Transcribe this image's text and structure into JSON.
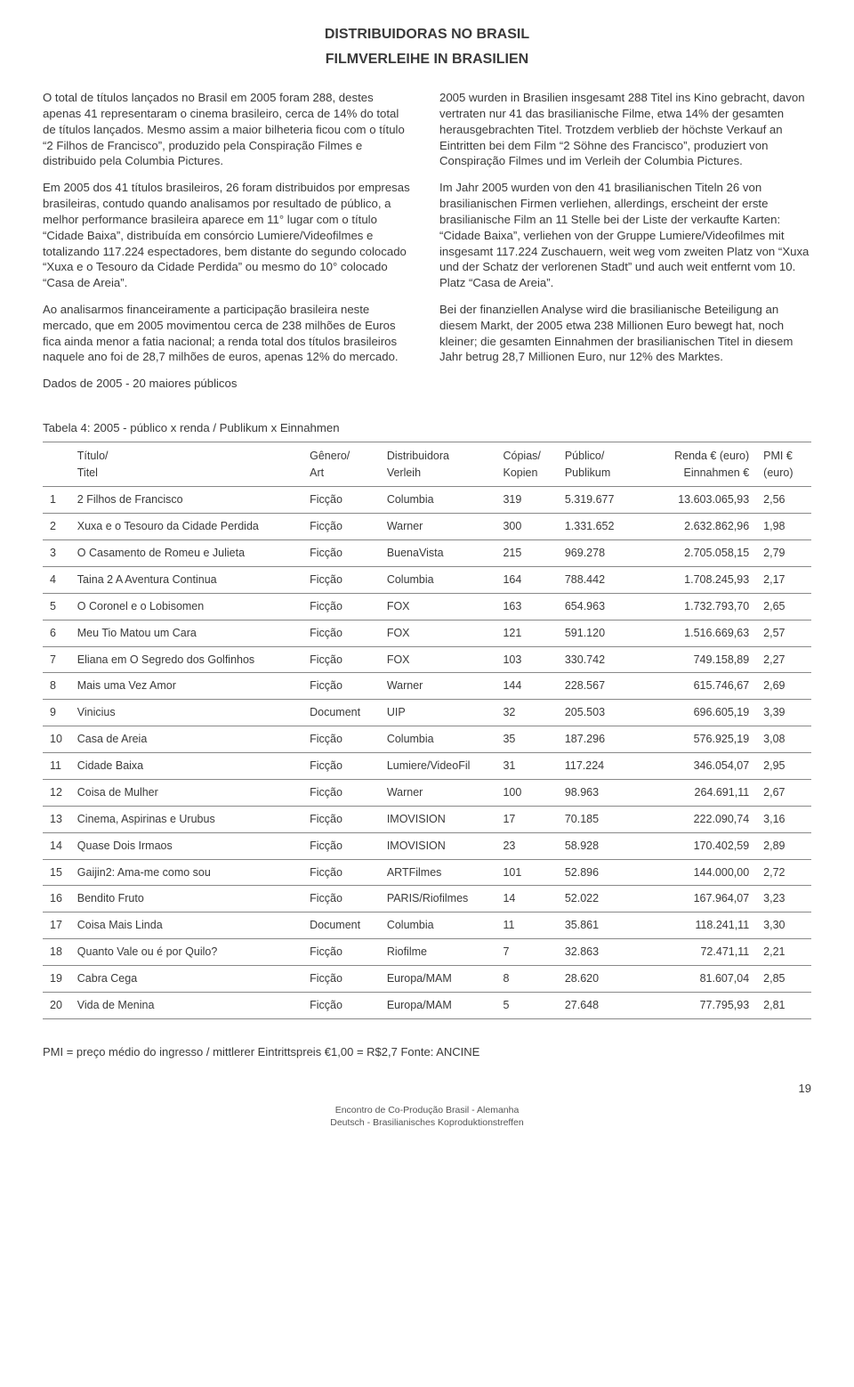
{
  "header": {
    "title": "DISTRIBUIDORAS NO BRASIL",
    "subtitle": "FILMVERLEIHE IN BRASILIEN"
  },
  "body": {
    "left_paragraphs": [
      "O total de títulos lançados no Brasil em 2005 foram 288, destes apenas 41 representaram o cinema brasileiro, cerca de 14% do total de títulos lançados. Mesmo assim a maior bilheteria ficou com o título “2 Filhos de Francisco”, produzido pela Conspiração Filmes e distribuido pela Columbia Pictures.",
      "Em 2005 dos 41 títulos brasileiros, 26 foram distribuidos por empresas brasileiras, contudo quando analisamos por resultado de público, a melhor performance brasileira aparece em 11° lugar com o título “Cidade Baixa”, distribuída em consórcio Lumiere/Videofilmes e totalizando 117.224 espectadores, bem distante do segundo colocado “Xuxa e o Tesouro da Cidade Perdida” ou mesmo do 10° colocado “Casa de Areia”.",
      "Ao analisarmos financeiramente a participação brasileira neste mercado, que em 2005 movimentou cerca de 238 milhões de Euros fica ainda menor a fatia nacional; a renda total dos títulos brasileiros naquele ano foi de 28,7 milhões de euros, apenas 12% do mercado.",
      "Dados de 2005 - 20 maiores públicos"
    ],
    "right_paragraphs": [
      "2005 wurden in Brasilien insgesamt 288 Titel ins Kino gebracht, davon vertraten nur 41 das brasilianische Filme, etwa 14% der gesamten herausgebrachten Titel. Trotzdem verblieb der höchste Verkauf an Eintritten bei dem Film “2 Söhne des Francisco”, produziert von Conspiração Filmes und im Verleih der Columbia Pictures.",
      "Im Jahr 2005 wurden von den 41 brasilianischen Titeln 26 von brasilianischen Firmen verliehen, allerdings, erscheint der erste brasilianische Film an 11 Stelle bei der Liste der verkaufte Karten: “Cidade Baixa”, verliehen von der Gruppe Lumiere/Videofilmes mit insgesamt 117.224 Zuschauern, weit weg vom zweiten Platz von “Xuxa und der Schatz der verlorenen Stadt” und auch weit entfernt vom 10. Platz “Casa de Areia”.",
      "Bei der finanziellen Analyse wird die brasilianische Beteiligung an diesem Markt, der 2005 etwa 238 Millionen Euro bewegt hat, noch kleiner; die gesamten Einnahmen der brasilianischen Titel in diesem Jahr betrug 28,7 Millionen Euro, nur 12% des Marktes."
    ]
  },
  "table": {
    "caption": "Tabela 4: 2005 - público x renda / Publikum x Einnahmen",
    "headers": {
      "title": "Título/\nTitel",
      "genre": "Gênero/\nArt",
      "distributor": "Distribuidora\nVerleih",
      "copies": "Cópias/\nKopien",
      "public": "Público/\nPublikum",
      "revenue": "Renda € (euro)\nEinnahmen €",
      "pmi": "PMI € (euro)"
    },
    "rows": [
      {
        "idx": "1",
        "title": "2 Filhos de Francisco",
        "genre": "Ficção",
        "dist": "Columbia",
        "copies": "319",
        "pub": "5.319.677",
        "rev": "13.603.065,93",
        "pmi": "2,56"
      },
      {
        "idx": "2",
        "title": "Xuxa e o Tesouro da Cidade Perdida",
        "genre": "Ficção",
        "dist": "Warner",
        "copies": "300",
        "pub": "1.331.652",
        "rev": "2.632.862,96",
        "pmi": "1,98"
      },
      {
        "idx": "3",
        "title": "O Casamento de Romeu e Julieta",
        "genre": "Ficção",
        "dist": "BuenaVista",
        "copies": "215",
        "pub": "969.278",
        "rev": "2.705.058,15",
        "pmi": "2,79"
      },
      {
        "idx": "4",
        "title": "Taina 2 A Aventura Continua",
        "genre": "Ficção",
        "dist": "Columbia",
        "copies": "164",
        "pub": "788.442",
        "rev": "1.708.245,93",
        "pmi": "2,17"
      },
      {
        "idx": "5",
        "title": "O Coronel e o Lobisomen",
        "genre": "Ficção",
        "dist": "FOX",
        "copies": "163",
        "pub": "654.963",
        "rev": "1.732.793,70",
        "pmi": "2,65"
      },
      {
        "idx": "6",
        "title": "Meu Tio Matou um Cara",
        "genre": "Ficção",
        "dist": "FOX",
        "copies": "121",
        "pub": "591.120",
        "rev": "1.516.669,63",
        "pmi": "2,57"
      },
      {
        "idx": "7",
        "title": "Eliana em O Segredo dos Golfinhos",
        "genre": "Ficção",
        "dist": "FOX",
        "copies": "103",
        "pub": "330.742",
        "rev": "749.158,89",
        "pmi": "2,27"
      },
      {
        "idx": "8",
        "title": "Mais uma Vez Amor",
        "genre": "Ficção",
        "dist": "Warner",
        "copies": "144",
        "pub": "228.567",
        "rev": "615.746,67",
        "pmi": "2,69"
      },
      {
        "idx": "9",
        "title": "Vinicius",
        "genre": "Document",
        "dist": "UIP",
        "copies": "32",
        "pub": "205.503",
        "rev": "696.605,19",
        "pmi": "3,39"
      },
      {
        "idx": "10",
        "title": "Casa de Areia",
        "genre": "Ficção",
        "dist": "Columbia",
        "copies": "35",
        "pub": "187.296",
        "rev": "576.925,19",
        "pmi": "3,08"
      },
      {
        "idx": "11",
        "title": "Cidade Baixa",
        "genre": "Ficção",
        "dist": "Lumiere/VideoFil",
        "copies": "31",
        "pub": "117.224",
        "rev": "346.054,07",
        "pmi": "2,95"
      },
      {
        "idx": "12",
        "title": "Coisa de Mulher",
        "genre": "Ficção",
        "dist": "Warner",
        "copies": "100",
        "pub": "98.963",
        "rev": "264.691,11",
        "pmi": "2,67"
      },
      {
        "idx": "13",
        "title": "Cinema, Aspirinas e Urubus",
        "genre": "Ficção",
        "dist": "IMOVISION",
        "copies": "17",
        "pub": "70.185",
        "rev": "222.090,74",
        "pmi": "3,16"
      },
      {
        "idx": "14",
        "title": "Quase Dois Irmaos",
        "genre": "Ficção",
        "dist": "IMOVISION",
        "copies": "23",
        "pub": "58.928",
        "rev": "170.402,59",
        "pmi": "2,89"
      },
      {
        "idx": "15",
        "title": "Gaijin2: Ama-me como sou",
        "genre": "Ficção",
        "dist": "ARTFilmes",
        "copies": "101",
        "pub": "52.896",
        "rev": "144.000,00",
        "pmi": "2,72"
      },
      {
        "idx": "16",
        "title": "Bendito Fruto",
        "genre": "Ficção",
        "dist": "PARIS/Riofilmes",
        "copies": "14",
        "pub": "52.022",
        "rev": "167.964,07",
        "pmi": "3,23"
      },
      {
        "idx": "17",
        "title": "Coisa Mais Linda",
        "genre": "Document",
        "dist": "Columbia",
        "copies": "11",
        "pub": "35.861",
        "rev": "118.241,11",
        "pmi": "3,30"
      },
      {
        "idx": "18",
        "title": "Quanto Vale ou é por Quilo?",
        "genre": "Ficção",
        "dist": "Riofilme",
        "copies": "7",
        "pub": "32.863",
        "rev": "72.471,11",
        "pmi": "2,21"
      },
      {
        "idx": "19",
        "title": "Cabra Cega",
        "genre": "Ficção",
        "dist": "Europa/MAM",
        "copies": "8",
        "pub": "28.620",
        "rev": "81.607,04",
        "pmi": "2,85"
      },
      {
        "idx": "20",
        "title": "Vida de Menina",
        "genre": "Ficção",
        "dist": "Europa/MAM",
        "copies": "5",
        "pub": "27.648",
        "rev": "77.795,93",
        "pmi": "2,81"
      }
    ]
  },
  "footer": {
    "note": "PMI = preço médio do ingresso / mittlerer Eintrittspreis €1,00 = R$2,7 Fonte: ANCINE",
    "page_num": "19",
    "center_line1": "Encontro de Co-Produção Brasil - Alemanha",
    "center_line2": "Deutsch - Brasilianisches Koproduktionstreffen"
  },
  "styling": {
    "font_family": "Arial, Helvetica, sans-serif",
    "text_color": "#3a3a3a",
    "border_color": "#888888",
    "background_color": "#ffffff",
    "title_fontsize": 16,
    "body_fontsize": 13.2,
    "table_fontsize": 12.5
  }
}
